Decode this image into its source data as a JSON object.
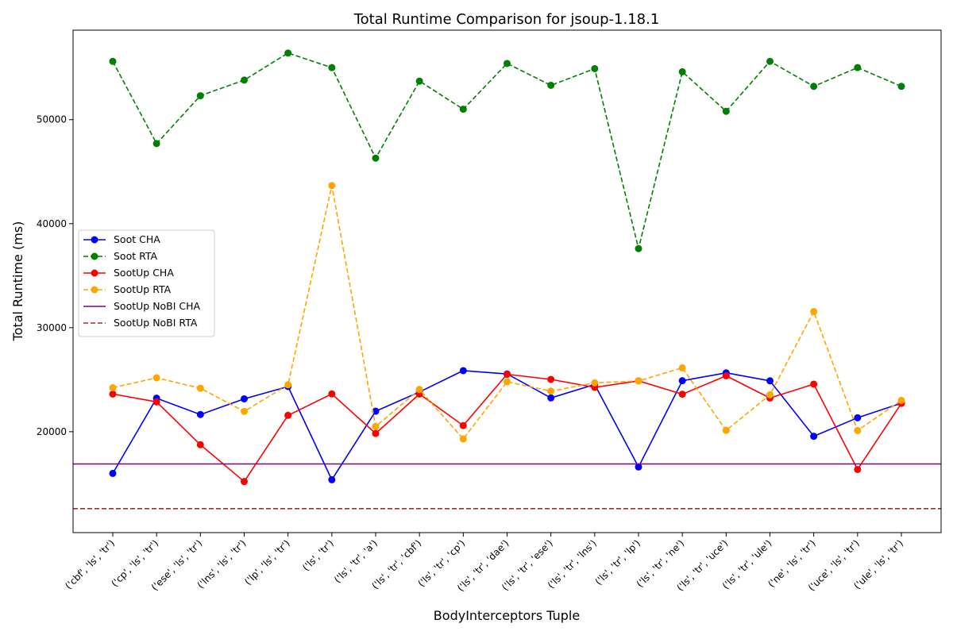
{
  "chart_data": {
    "type": "line",
    "title": "Total Runtime Comparison for jsoup-1.18.1",
    "xlabel": "BodyInterceptors Tuple",
    "ylabel": "Total Runtime (ms)",
    "ylim": [
      10300,
      58600
    ],
    "yticks": [
      20000,
      30000,
      40000,
      50000
    ],
    "legend_position": "center-left",
    "categories": [
      "('cbf', 'ls', 'tr')",
      "('cp', 'ls', 'tr')",
      "('ese', 'ls', 'tr')",
      "('lns', 'ls', 'tr')",
      "('lp', 'ls', 'tr')",
      "('ls', 'tr')",
      "('ls', 'tr', 'a')",
      "('ls', 'tr', 'cbf')",
      "('ls', 'tr', 'cp')",
      "('ls', 'tr', 'dae')",
      "('ls', 'tr', 'ese')",
      "('ls', 'tr', 'lns')",
      "('ls', 'tr', 'lp')",
      "('ls', 'tr', 'ne')",
      "('ls', 'tr', 'uce')",
      "('ls', 'tr', 'ule')",
      "('ne', 'ls', 'tr')",
      "('uce', 'ls', 'tr')",
      "('ule', 'ls', 'tr')"
    ],
    "series": [
      {
        "name": "Soot CHA",
        "color": "#0000ff",
        "style": "solid",
        "marker": true,
        "values": [
          15990,
          23220,
          21650,
          23160,
          24340,
          15380,
          21970,
          23820,
          25870,
          25550,
          23250,
          24540,
          16610,
          24900,
          25660,
          24890,
          19560,
          21340,
          22740
        ]
      },
      {
        "name": "Soot RTA",
        "color": "#008000",
        "style": "dashed",
        "marker": true,
        "values": [
          55600,
          47700,
          52300,
          53800,
          56400,
          55000,
          46300,
          53700,
          51000,
          55400,
          53300,
          54900,
          37600,
          54600,
          50800,
          55600,
          53200,
          55000,
          53200
        ]
      },
      {
        "name": "SootUp CHA",
        "color": "#ff0000",
        "style": "solid",
        "marker": true,
        "values": [
          23620,
          22870,
          18750,
          15210,
          21570,
          23630,
          19830,
          23620,
          20590,
          25520,
          25030,
          24260,
          24890,
          23610,
          25370,
          23240,
          24570,
          16370,
          22720
        ]
      },
      {
        "name": "SootUp RTA",
        "color": "#ffa500",
        "style": "dashed",
        "marker": true,
        "values": [
          24230,
          25180,
          24180,
          21950,
          24510,
          43660,
          20500,
          24060,
          19300,
          24800,
          23900,
          24700,
          24880,
          26140,
          20130,
          23550,
          31550,
          20110,
          23010
        ]
      },
      {
        "name": "SootUp NoBI CHA",
        "color": "#800080",
        "style": "solid",
        "marker": false,
        "hline": 16900
      },
      {
        "name": "SootUp NoBI RTA",
        "color": "#a52a2a",
        "style": "dashed",
        "marker": false,
        "hline": 12600
      }
    ]
  }
}
